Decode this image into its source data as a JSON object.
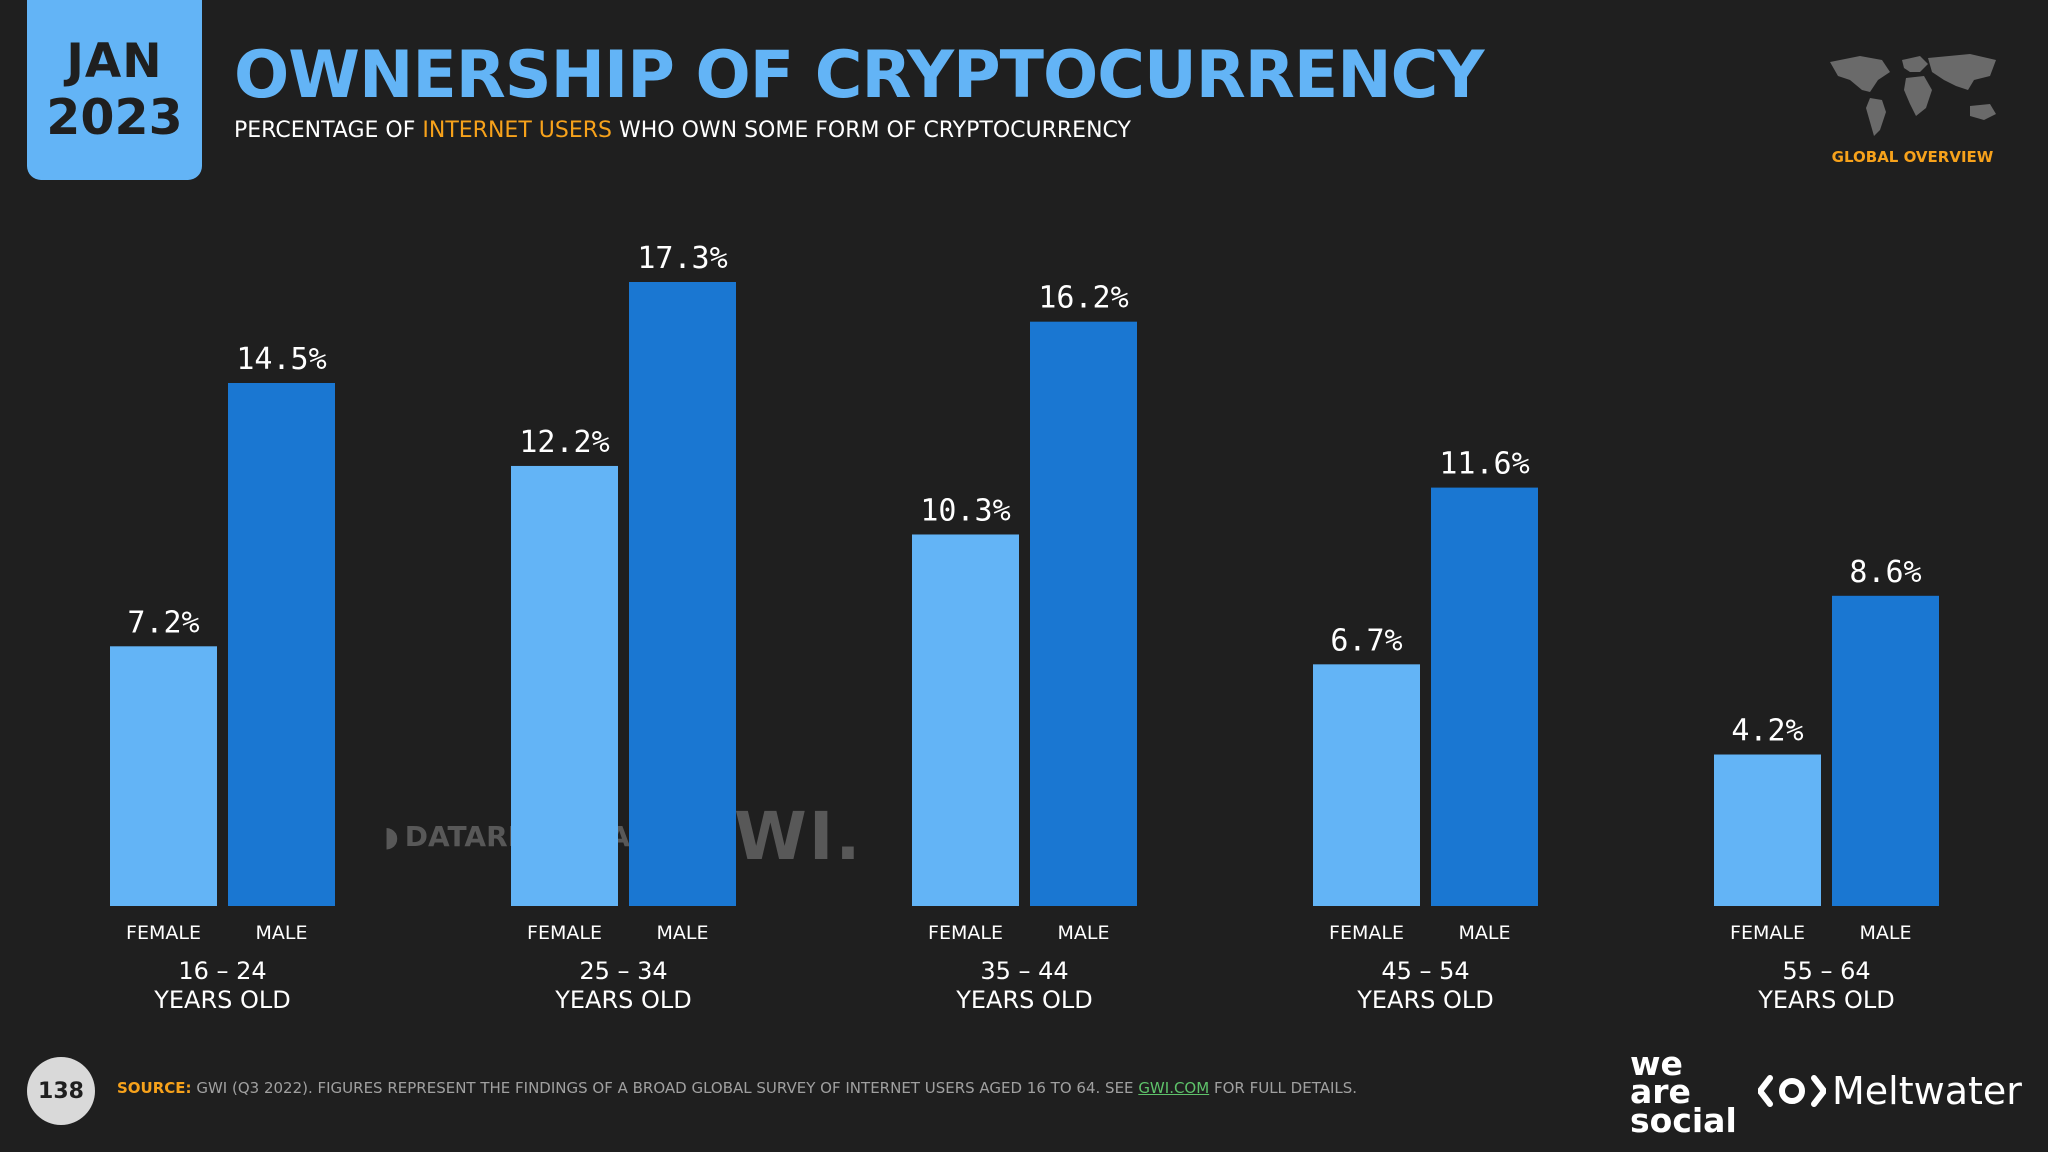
{
  "header": {
    "month": "JAN",
    "year": "2023",
    "title": "OWNERSHIP OF CRYPTOCURRENCY",
    "subtitle_pre": "PERCENTAGE OF",
    "subtitle_highlight": "INTERNET USERS",
    "subtitle_post": "WHO OWN SOME FORM OF CRYPTOCURRENCY",
    "global_overview": "GLOBAL OVERVIEW",
    "map_icon": "world-map-icon"
  },
  "chart_data": {
    "type": "bar",
    "categories": [
      [
        "16 – 24",
        "YEARS OLD"
      ],
      [
        "25 – 34",
        "YEARS OLD"
      ],
      [
        "35 – 44",
        "YEARS OLD"
      ],
      [
        "45 – 54",
        "YEARS OLD"
      ],
      [
        "55 – 64",
        "YEARS OLD"
      ]
    ],
    "series": [
      {
        "name": "FEMALE",
        "values": [
          7.2,
          12.2,
          10.3,
          6.7,
          4.2
        ],
        "labels": [
          "7.2%",
          "12.2%",
          "10.3%",
          "6.7%",
          "4.2%"
        ],
        "color": "#63b4f6"
      },
      {
        "name": "MALE",
        "values": [
          14.5,
          17.3,
          16.2,
          11.6,
          8.6
        ],
        "labels": [
          "14.5%",
          "17.3%",
          "16.2%",
          "11.6%",
          "8.6%"
        ],
        "color": "#1a77d2"
      }
    ],
    "ylim": [
      0,
      17.3
    ],
    "grid": false,
    "legend": "none"
  },
  "watermark": {
    "datareportal": "DATAREPORTAL",
    "gwi": "GWI."
  },
  "footer": {
    "page_number": "138",
    "source_label": "SOURCE:",
    "source_text": "GWI (Q3 2022). FIGURES REPRESENT THE FINDINGS OF A BROAD GLOBAL SURVEY OF INTERNET USERS AGED 16 TO 64. SEE",
    "source_link": "GWI.COM",
    "source_tail": "FOR FULL DETAILS.",
    "was_line1": "we",
    "was_line2": "are",
    "was_line3": "social",
    "meltwater": "Meltwater"
  }
}
